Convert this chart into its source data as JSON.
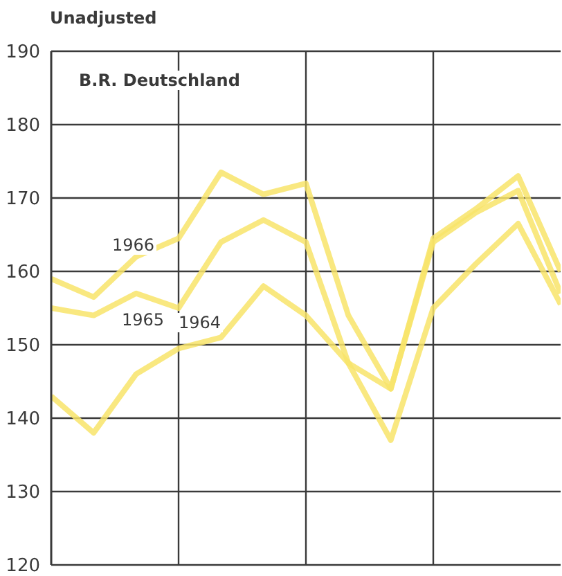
{
  "chart_data": {
    "type": "line",
    "ylabel": "Unadjusted",
    "subtitle": "B.R. Deutschland",
    "categories": [
      null,
      null,
      null,
      null,
      null,
      null,
      null,
      null,
      null,
      null,
      null,
      null,
      null
    ],
    "ylim": [
      120,
      190
    ],
    "yticks": [
      120,
      130,
      140,
      150,
      160,
      170,
      180,
      190
    ],
    "grid": true,
    "marker": "none",
    "line_style": "solid",
    "series": [
      {
        "color": "#f8e46a",
        "values": [
          159,
          156.5,
          162,
          164.5,
          173.5,
          170.5,
          172,
          154,
          144,
          164.5,
          168.5,
          173,
          160
        ]
      },
      {
        "color": "#f8e46a",
        "values": [
          155,
          154,
          157,
          155,
          164,
          167,
          164,
          147.5,
          144,
          164,
          168,
          171,
          157
        ]
      },
      {
        "color": "#f8e46a",
        "values": [
          143,
          138,
          146,
          149.5,
          151,
          158,
          154,
          147.5,
          137,
          155,
          161,
          166.5,
          155.5
        ]
      }
    ],
    "annotations": [
      "1966",
      "1965",
      "1964"
    ]
  }
}
